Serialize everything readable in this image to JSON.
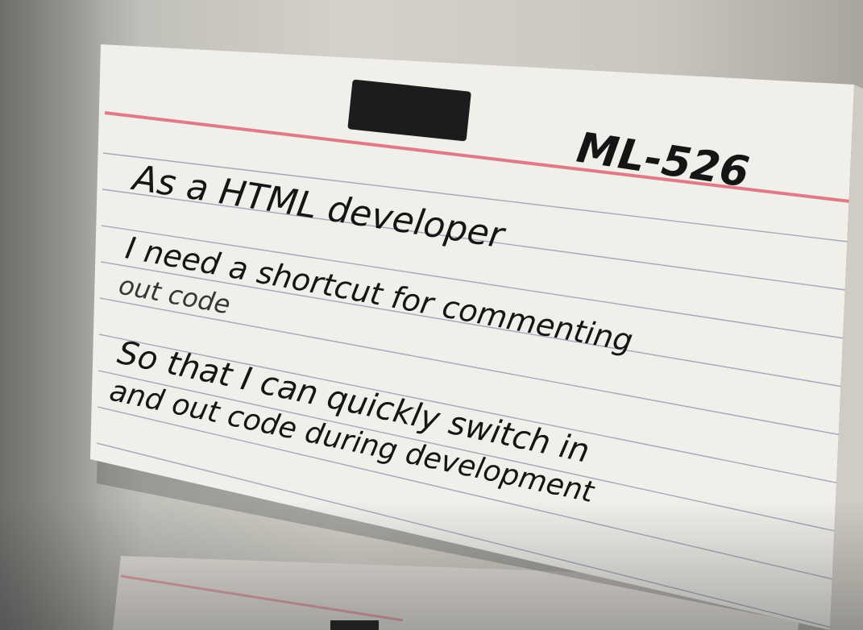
{
  "card": {
    "id": "ML-526",
    "line1": "As a HTML developer",
    "line2a": "I need a shortcut for commenting",
    "line2b": "out code",
    "line3a": "So that I can quickly switch in",
    "line3b": "and out code during development"
  },
  "colors": {
    "card_paper": "#f1efe9",
    "rule_red": "#e07a86",
    "rule_blue": "#8a8fb0",
    "ink": "#151515",
    "tape": "#1c1c1c"
  }
}
